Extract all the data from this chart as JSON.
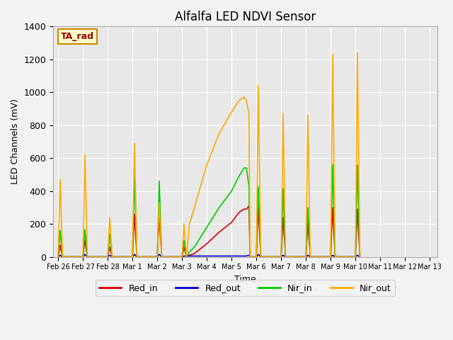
{
  "title": "Alfalfa LED NDVI Sensor",
  "xlabel": "Time",
  "ylabel": "LED Channels (mV)",
  "ylim": [
    0,
    1400
  ],
  "figsize": [
    6.4,
    4.8
  ],
  "dpi": 100,
  "background_color": "#f2f2f2",
  "plot_bg_color": "#e8e8e8",
  "annotation_text": "TA_rad",
  "annotation_color": "#990000",
  "annotation_bg": "#ffffcc",
  "annotation_border": "#cc8800",
  "xtick_labels": [
    "Feb 26",
    "Feb 27",
    "Feb 28",
    "Mar 1",
    "Mar 2",
    "Mar 3",
    "Mar 4",
    "Mar 5",
    "Mar 6",
    "Mar 7",
    "Mar 8",
    "Mar 9",
    "Mar 10",
    "Mar 11",
    "Mar 12",
    "Mar 13"
  ],
  "Red_in": {
    "color": "#dd0000",
    "x": [
      0,
      0.08,
      0.18,
      1.0,
      1.08,
      1.18,
      2.0,
      2.08,
      2.18,
      3.0,
      3.08,
      3.18,
      4.0,
      4.08,
      4.18,
      5.0,
      5.08,
      5.18,
      5.3,
      5.5,
      6.0,
      6.5,
      7.0,
      7.3,
      7.5,
      7.6,
      7.7,
      7.75,
      8.0,
      8.08,
      8.18,
      9.0,
      9.08,
      9.18,
      10.0,
      10.08,
      10.18,
      11.0,
      11.08,
      11.18,
      12.0,
      12.08,
      12.18
    ],
    "y": [
      0,
      70,
      0,
      0,
      100,
      0,
      0,
      60,
      0,
      0,
      260,
      0,
      0,
      250,
      0,
      0,
      60,
      0,
      10,
      20,
      80,
      150,
      210,
      270,
      290,
      290,
      310,
      0,
      0,
      310,
      0,
      0,
      240,
      0,
      0,
      210,
      0,
      0,
      300,
      0,
      0,
      290,
      0
    ]
  },
  "Red_out": {
    "color": "#0000cc",
    "x": [
      0,
      0.08,
      0.18,
      1.0,
      1.08,
      1.18,
      2.0,
      2.08,
      2.18,
      3.0,
      3.08,
      3.18,
      4.0,
      4.08,
      4.18,
      5.0,
      5.08,
      5.3,
      5.5,
      6.0,
      6.5,
      7.0,
      7.3,
      7.5,
      7.6,
      7.7,
      7.75,
      8.0,
      8.08,
      8.18,
      9.0,
      9.08,
      9.18,
      10.0,
      10.08,
      10.18,
      11.0,
      11.08,
      11.18,
      12.0,
      12.08,
      12.18
    ],
    "y": [
      0,
      10,
      0,
      0,
      15,
      0,
      0,
      10,
      0,
      0,
      15,
      0,
      0,
      15,
      0,
      0,
      5,
      5,
      5,
      5,
      5,
      5,
      5,
      5,
      5,
      10,
      0,
      0,
      15,
      0,
      0,
      10,
      0,
      0,
      10,
      0,
      0,
      10,
      0,
      0,
      10,
      0
    ]
  },
  "Nir_in": {
    "color": "#00cc00",
    "x": [
      0,
      0.08,
      0.18,
      1.0,
      1.08,
      1.18,
      2.0,
      2.08,
      2.18,
      3.0,
      3.08,
      3.18,
      4.0,
      4.08,
      4.18,
      5.0,
      5.08,
      5.18,
      5.3,
      5.5,
      6.0,
      6.5,
      7.0,
      7.3,
      7.5,
      7.6,
      7.7,
      7.75,
      8.0,
      8.08,
      8.18,
      9.0,
      9.08,
      9.18,
      10.0,
      10.08,
      10.18,
      11.0,
      11.08,
      11.18,
      12.0,
      12.08,
      12.18
    ],
    "y": [
      0,
      160,
      0,
      0,
      165,
      0,
      0,
      140,
      0,
      0,
      490,
      0,
      0,
      460,
      0,
      0,
      100,
      0,
      30,
      60,
      180,
      300,
      400,
      490,
      540,
      540,
      430,
      0,
      0,
      425,
      0,
      0,
      415,
      0,
      0,
      300,
      0,
      0,
      560,
      0,
      0,
      560,
      0
    ]
  },
  "Nir_out": {
    "color": "#ffaa00",
    "x": [
      0,
      0.08,
      0.18,
      1.0,
      1.08,
      1.18,
      2.0,
      2.08,
      2.18,
      3.0,
      3.08,
      3.18,
      4.0,
      4.08,
      4.18,
      5.0,
      5.08,
      5.18,
      5.3,
      5.5,
      6.0,
      6.5,
      7.0,
      7.3,
      7.5,
      7.6,
      7.7,
      7.75,
      8.0,
      8.08,
      8.18,
      9.0,
      9.08,
      9.18,
      10.0,
      10.08,
      10.18,
      11.0,
      11.08,
      11.18,
      12.0,
      12.08,
      12.18
    ],
    "y": [
      0,
      470,
      0,
      0,
      620,
      0,
      0,
      240,
      0,
      0,
      690,
      0,
      0,
      330,
      0,
      0,
      200,
      0,
      200,
      300,
      560,
      750,
      880,
      950,
      970,
      950,
      870,
      0,
      0,
      1040,
      0,
      0,
      870,
      0,
      0,
      860,
      0,
      0,
      1230,
      0,
      0,
      1240,
      0
    ]
  },
  "legend_entries": [
    "Red_in",
    "Red_out",
    "Nir_in",
    "Nir_out"
  ],
  "legend_colors": [
    "#dd0000",
    "#0000cc",
    "#00cc00",
    "#ffaa00"
  ],
  "yticks": [
    0,
    200,
    400,
    600,
    800,
    1000,
    1200,
    1400
  ],
  "grid_color": "#ffffff",
  "grid_lw": 0.8
}
